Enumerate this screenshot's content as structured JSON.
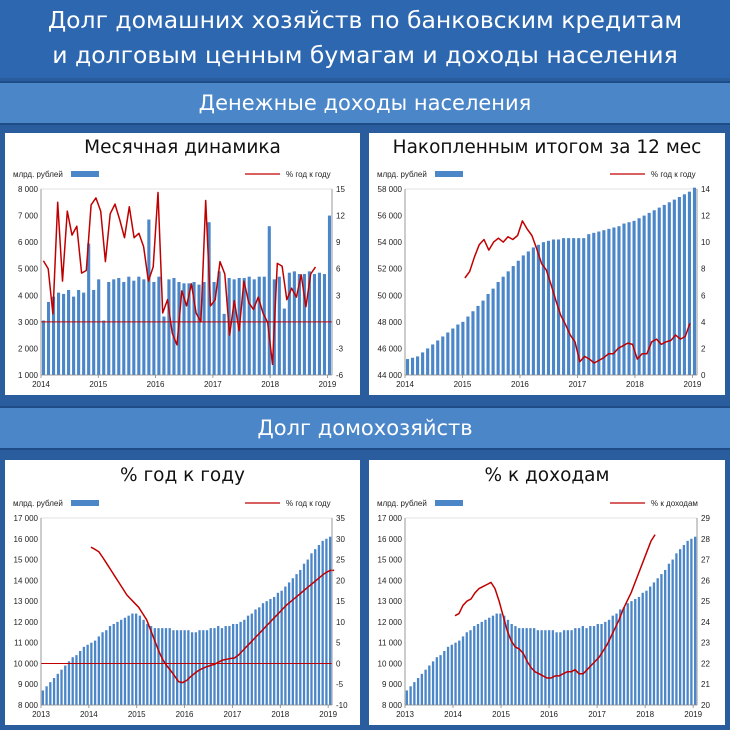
{
  "header": {
    "title_line1": "Долг домашних хозяйств по банковским кредитам",
    "title_line2": "и долговым ценным бумагам и доходы населения"
  },
  "sections": {
    "income": "Денежные доходы населения",
    "debt": "Долг домохозяйств"
  },
  "panels": {
    "monthly": "Месячная динамика",
    "cumulative": "Накопленным итогом за 12 мес",
    "debt_yoy": "% год к году",
    "debt_income": "% к доходам"
  },
  "colors": {
    "bars": "#4a86c8",
    "line": "#c00000",
    "zero": "#c00000",
    "axis": "#888888"
  },
  "chart_data": [
    {
      "id": "monthly",
      "type": "bar",
      "bar_legend": "млрд. рублей",
      "line_legend": "%  год к году",
      "x_ticks": [
        "2014",
        "2015",
        "2016",
        "2017",
        "2018",
        "2019"
      ],
      "x_range": [
        2014,
        2019.08
      ],
      "y_left_ticks": [
        "1 000",
        "2 000",
        "3 000",
        "4 000",
        "5 000",
        "6 000",
        "7 000",
        "8 000"
      ],
      "y_left_range": [
        1000,
        8000
      ],
      "y_right_ticks": [
        "-6",
        "-3",
        "0",
        "3",
        "6",
        "9",
        "12",
        "15"
      ],
      "y_right_range": [
        -6,
        15
      ],
      "zero_line": 0,
      "bars": [
        3050,
        3750,
        3950,
        4100,
        4050,
        4200,
        3950,
        4200,
        4100,
        5950,
        4200,
        4600,
        3050,
        4500,
        4600,
        4650,
        4500,
        4700,
        4550,
        4700,
        4600,
        6850,
        4500,
        4700,
        3200,
        4600,
        4650,
        4500,
        4450,
        4450,
        4500,
        4400,
        4500,
        6750,
        4500,
        4900,
        3300,
        4650,
        4600,
        4650,
        4650,
        4700,
        4600,
        4700,
        4700,
        6600,
        4600,
        4700,
        3500,
        4850,
        4900,
        4800,
        4800,
        4900,
        4800,
        4850,
        4800,
        7000
      ],
      "line": [
        6.9,
        6.0,
        0.9,
        13.5,
        4.6,
        12.5,
        9.8,
        10.8,
        5.5,
        5.8,
        13.2,
        14.0,
        12.5,
        6.8,
        12.2,
        13.3,
        11.5,
        9.5,
        13.0,
        9.5,
        10.0,
        8.5,
        4.6,
        6.2,
        14.6,
        1.0,
        2.5,
        -1.3,
        -2.6,
        3.5,
        1.8,
        4.3,
        1.0,
        0.0,
        13.7,
        1.8,
        2.5,
        6.8,
        5.4,
        -1.5,
        2.4,
        -1.0,
        4.6,
        2.2,
        1.4,
        2.8,
        1.0,
        -0.1,
        -4.8,
        6.6,
        6.3,
        2.5,
        3.8,
        2.8,
        5.3,
        1.7,
        5.4,
        6.2
      ]
    },
    {
      "id": "cumulative",
      "type": "bar",
      "bar_legend": "млрд. рублей",
      "line_legend": "%  год к году",
      "x_ticks": [
        "2014",
        "2015",
        "2016",
        "2017",
        "2018",
        "2019"
      ],
      "x_range": [
        2014,
        2019.08
      ],
      "y_left_ticks": [
        "44 000",
        "46 000",
        "48 000",
        "50 000",
        "52 000",
        "54 000",
        "56 000",
        "58 000"
      ],
      "y_left_range": [
        44000,
        58000
      ],
      "y_right_ticks": [
        "0",
        "2",
        "4",
        "6",
        "8",
        "10",
        "12",
        "14"
      ],
      "y_right_range": [
        0,
        14
      ],
      "bars": [
        45200,
        45300,
        45400,
        45700,
        46000,
        46300,
        46600,
        46900,
        47200,
        47500,
        47800,
        48000,
        48400,
        48800,
        49200,
        49600,
        50100,
        50500,
        51000,
        51400,
        51800,
        52200,
        52600,
        53000,
        53300,
        53600,
        53800,
        54000,
        54100,
        54200,
        54200,
        54300,
        54300,
        54300,
        54300,
        54300,
        54600,
        54700,
        54800,
        54900,
        55000,
        55100,
        55200,
        55400,
        55500,
        55600,
        55800,
        56000,
        56200,
        56400,
        56600,
        56800,
        57000,
        57200,
        57400,
        57600,
        57800,
        58100
      ],
      "line_start": 2015,
      "line": [
        7.3,
        7.8,
        8.9,
        9.8,
        10.2,
        9.4,
        10.0,
        10.3,
        10.0,
        10.4,
        10.2,
        10.5,
        11.6,
        11.0,
        10.5,
        9.5,
        8.4,
        7.9,
        6.8,
        5.6,
        4.5,
        3.8,
        3.0,
        2.5,
        1.0,
        1.4,
        1.2,
        0.9,
        1.1,
        1.3,
        1.6,
        1.6,
        2.0,
        2.2,
        2.4,
        2.3,
        1.2,
        1.6,
        1.6,
        2.5,
        2.7,
        2.3,
        2.5,
        2.6,
        3.0,
        2.7,
        2.9,
        3.9
      ]
    },
    {
      "id": "debt_yoy",
      "type": "bar",
      "bar_legend": "млрд. рублей",
      "line_legend": "%  год к году",
      "x_ticks": [
        "2013",
        "2014",
        "2015",
        "2016",
        "2017",
        "2018",
        "2019"
      ],
      "x_range": [
        2013,
        2019.08
      ],
      "y_left_ticks": [
        "8 000",
        "9 000",
        "10 000",
        "11 000",
        "12 000",
        "13 000",
        "14 000",
        "15 000",
        "16 000",
        "17 000"
      ],
      "y_left_range": [
        8000,
        17000
      ],
      "y_right_ticks": [
        "-10",
        "-5",
        "0",
        "5",
        "10",
        "15",
        "20",
        "25",
        "30",
        "35"
      ],
      "y_right_range": [
        -10,
        35
      ],
      "zero_line": 0,
      "bars": [
        8700,
        8900,
        9100,
        9300,
        9500,
        9700,
        9900,
        10100,
        10300,
        10400,
        10600,
        10800,
        10900,
        11000,
        11100,
        11300,
        11500,
        11600,
        11800,
        11900,
        12000,
        12100,
        12200,
        12300,
        12400,
        12400,
        12300,
        12100,
        11900,
        11800,
        11700,
        11700,
        11700,
        11700,
        11700,
        11600,
        11600,
        11600,
        11600,
        11600,
        11500,
        11500,
        11600,
        11600,
        11600,
        11700,
        11700,
        11800,
        11700,
        11800,
        11800,
        11900,
        11900,
        12000,
        12100,
        12300,
        12400,
        12600,
        12700,
        12900,
        13000,
        13100,
        13200,
        13400,
        13500,
        13700,
        13900,
        14100,
        14300,
        14500,
        14800,
        15000,
        15300,
        15500,
        15700,
        15900,
        16000,
        16100
      ],
      "line_start": 2014,
      "line": [
        28.0,
        27.5,
        26.9,
        25.5,
        24.0,
        22.5,
        21.0,
        19.5,
        18.0,
        16.5,
        15.5,
        14.5,
        13.5,
        12.0,
        10.5,
        8.0,
        5.5,
        3.0,
        1.0,
        -0.5,
        -1.7,
        -3.0,
        -4.4,
        -4.6,
        -4.1,
        -3.2,
        -2.4,
        -1.7,
        -1.2,
        -0.8,
        -0.5,
        -0.2,
        0.3,
        0.8,
        1.0,
        1.2,
        1.3,
        2.0,
        3.0,
        4.0,
        5.0,
        6.0,
        7.0,
        8.0,
        9.0,
        10.0,
        11.0,
        12.0,
        13.0,
        14.0,
        14.8,
        15.6,
        16.4,
        17.2,
        18.0,
        18.8,
        19.6,
        20.4,
        21.2,
        21.9,
        22.4,
        22.4
      ]
    },
    {
      "id": "debt_income",
      "type": "bar",
      "bar_legend": "млрд. рублей",
      "line_legend": "%  к доходам",
      "x_ticks": [
        "2013",
        "2014",
        "2015",
        "2016",
        "2017",
        "2018",
        "2019"
      ],
      "x_range": [
        2013,
        2019.08
      ],
      "y_left_ticks": [
        "8 000",
        "9 000",
        "10 000",
        "11 000",
        "12 000",
        "13 000",
        "14 000",
        "15 000",
        "16 000",
        "17 000"
      ],
      "y_left_range": [
        8000,
        17000
      ],
      "y_right_ticks": [
        "20",
        "21",
        "22",
        "23",
        "24",
        "25",
        "26",
        "27",
        "28",
        "29"
      ],
      "y_right_range": [
        20,
        29
      ],
      "bars": [
        8700,
        8900,
        9100,
        9300,
        9500,
        9700,
        9900,
        10100,
        10300,
        10400,
        10600,
        10800,
        10900,
        11000,
        11100,
        11300,
        11500,
        11600,
        11800,
        11900,
        12000,
        12100,
        12200,
        12300,
        12400,
        12400,
        12300,
        12100,
        11900,
        11800,
        11700,
        11700,
        11700,
        11700,
        11700,
        11600,
        11600,
        11600,
        11600,
        11600,
        11500,
        11500,
        11600,
        11600,
        11600,
        11700,
        11700,
        11800,
        11700,
        11800,
        11800,
        11900,
        11900,
        12000,
        12100,
        12300,
        12400,
        12600,
        12700,
        12900,
        13000,
        13100,
        13200,
        13400,
        13500,
        13700,
        13900,
        14100,
        14300,
        14500,
        14800,
        15000,
        15300,
        15500,
        15700,
        15900,
        16000,
        16100
      ],
      "line_start": 2014,
      "line": [
        24.3,
        24.4,
        24.8,
        25.0,
        25.1,
        25.4,
        25.6,
        25.7,
        25.8,
        25.9,
        25.6,
        25.0,
        24.3,
        23.6,
        23.1,
        22.8,
        22.7,
        22.5,
        22.1,
        21.8,
        21.6,
        21.5,
        21.4,
        21.3,
        21.3,
        21.4,
        21.4,
        21.5,
        21.6,
        21.6,
        21.7,
        21.5,
        21.5,
        21.7,
        21.9,
        22.1,
        22.3,
        22.6,
        22.9,
        23.3,
        23.7,
        24.1,
        24.6,
        25.0,
        25.4,
        25.9,
        26.4,
        26.9,
        27.4,
        27.9,
        28.2
      ]
    }
  ]
}
